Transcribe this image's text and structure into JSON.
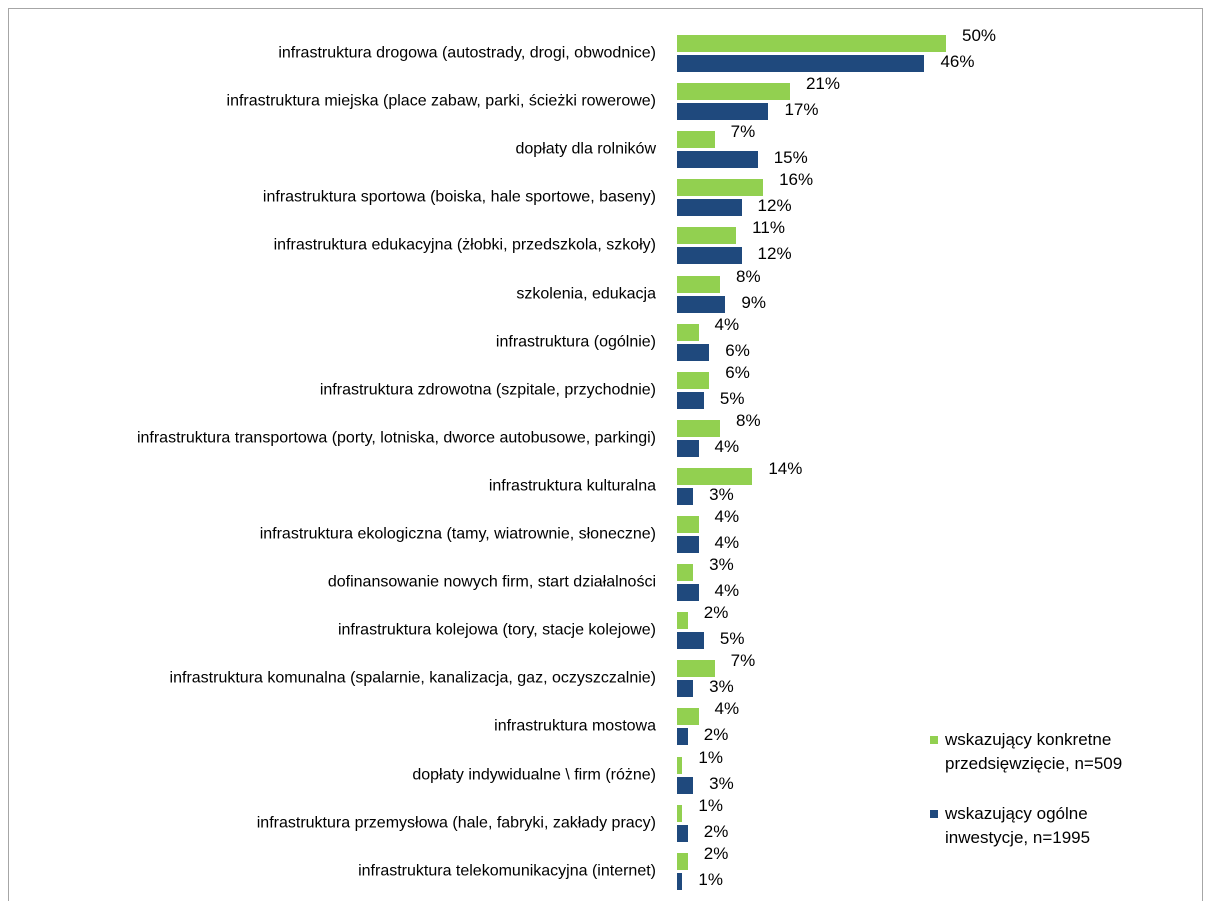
{
  "chart_data": {
    "type": "bar",
    "orientation": "horizontal",
    "categories": [
      "infrastruktura drogowa (autostrady, drogi, obwodnice)",
      "infrastruktura miejska (place zabaw, parki, ścieżki rowerowe)",
      "dopłaty dla rolników",
      "infrastruktura sportowa (boiska, hale sportowe, baseny)",
      "infrastruktura edukacyjna (żłobki, przedszkola, szkoły)",
      "szkolenia, edukacja",
      "infrastruktura (ogólnie)",
      "infrastruktura zdrowotna (szpitale, przychodnie)",
      "infrastruktura transportowa (porty, lotniska, dworce autobusowe, parkingi)",
      "infrastruktura kulturalna",
      "infrastruktura ekologiczna (tamy, wiatrownie, słoneczne)",
      "dofinansowanie nowych firm, start działalności",
      "infrastruktura kolejowa (tory, stacje kolejowe)",
      "infrastruktura komunalna (spalarnie, kanalizacja, gaz, oczyszczalnie)",
      "infrastruktura mostowa",
      "dopłaty indywidualne \\ firm (różne)",
      "infrastruktura przemysłowa (hale, fabryki, zakłady pracy)",
      "infrastruktura telekomunikacyjna (internet)"
    ],
    "series": [
      {
        "name": "wskazujący konkretne przedsięwzięcie, n=509",
        "color": "#92d050",
        "values": [
          50,
          21,
          7,
          16,
          11,
          8,
          4,
          6,
          8,
          14,
          4,
          3,
          2,
          7,
          4,
          1,
          1,
          2
        ],
        "value_labels": [
          "50%",
          "21%",
          "7%",
          "16%",
          "11%",
          "8%",
          "4%",
          "6%",
          "8%",
          "14%",
          "4%",
          "3%",
          "2%",
          "7%",
          "4%",
          "1%",
          "1%",
          "2%"
        ]
      },
      {
        "name": "wskazujący ogólne inwestycje, n=1995",
        "color": "#1f497d",
        "values": [
          46,
          17,
          15,
          12,
          12,
          9,
          6,
          5,
          4,
          3,
          4,
          4,
          5,
          3,
          2,
          3,
          2,
          1
        ],
        "value_labels": [
          "46%",
          "17%",
          "15%",
          "12%",
          "12%",
          "9%",
          "6%",
          "5%",
          "4%",
          "3%",
          "4%",
          "4%",
          "5%",
          "3%",
          "2%",
          "3%",
          "2%",
          "1%"
        ]
      }
    ],
    "legend": "lower right"
  }
}
